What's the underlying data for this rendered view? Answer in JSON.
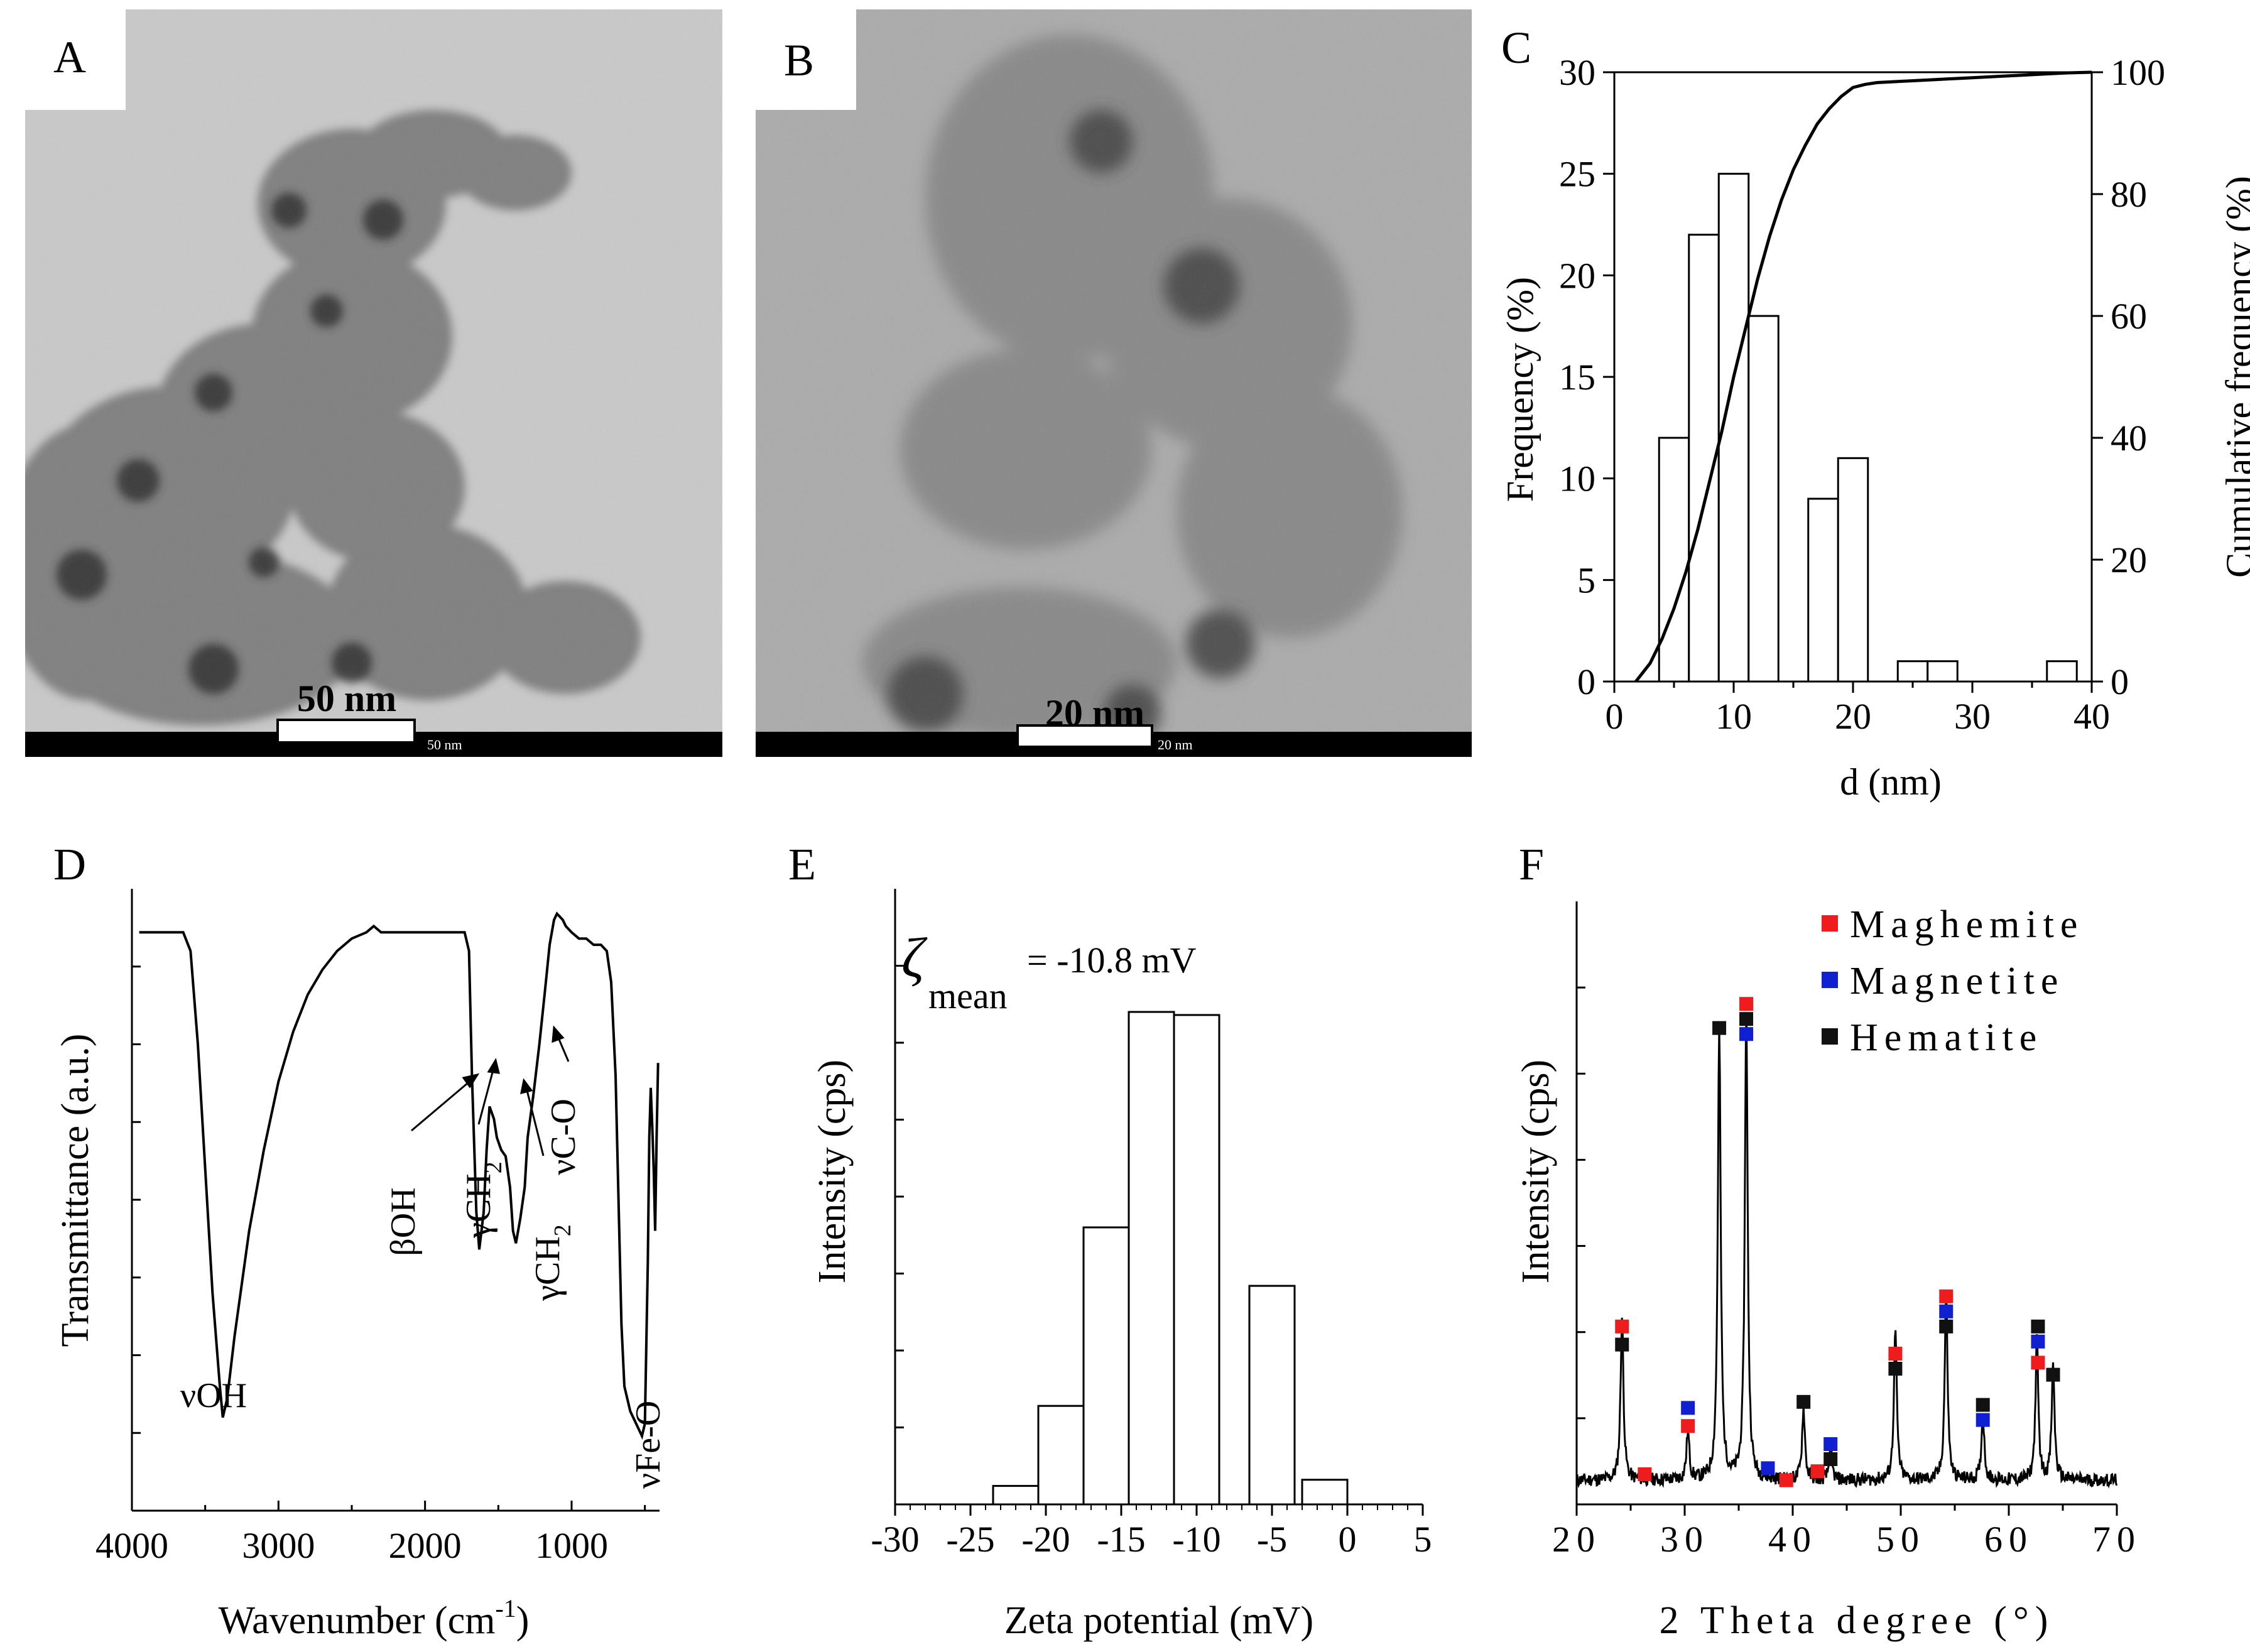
{
  "panels": {
    "A": {
      "label": "A",
      "scale_bar_label": "50 nm",
      "footer_text": "50 nm"
    },
    "B": {
      "label": "B",
      "scale_bar_label": "20 nm",
      "footer_text": "20 nm"
    },
    "C": {
      "label": "C",
      "xlabel": "d (nm)",
      "ylabel_left": "Frequency (%)",
      "ylabel_right": "Cumulative frequency (%)",
      "x_ticks": [
        "0",
        "10",
        "20",
        "30",
        "40"
      ],
      "y_left_ticks": [
        "0",
        "5",
        "10",
        "15",
        "20",
        "25",
        "30"
      ],
      "y_right_ticks": [
        "0",
        "20",
        "40",
        "60",
        "80",
        "100"
      ]
    },
    "D": {
      "label": "D",
      "xlabel_main": "Wavenumber (cm",
      "xlabel_sup": "-1",
      "xlabel_close": ")",
      "ylabel": "Transmittance (a.u.)",
      "x_ticks": [
        "4000",
        "3000",
        "2000",
        "1000"
      ],
      "annotations": {
        "voh": "νOH",
        "boh": "βOH",
        "gch2_a": "γCH",
        "gch2_b": "γCH",
        "sub2": "2",
        "vco": "νC-O",
        "vfeo": "νFe-O"
      }
    },
    "E": {
      "label": "E",
      "xlabel": "Zeta potential (mV)",
      "ylabel": "Intensity (cps)",
      "x_ticks": [
        "-30",
        "-25",
        "-20",
        "-15",
        "-10",
        "-5",
        "0",
        "5"
      ],
      "zeta_symbol": "ζ",
      "zeta_sub": "mean",
      "zeta_value": "= -10.8 mV"
    },
    "F": {
      "label": "F",
      "xlabel": "2 Theta degree (°)",
      "ylabel": "Intensity (cps)",
      "x_ticks": [
        "20",
        "30",
        "40",
        "50",
        "60",
        "70"
      ],
      "legend": [
        {
          "name": "Maghemite",
          "color": "#ee1c1c"
        },
        {
          "name": "Magnetite",
          "color": "#1020d0"
        },
        {
          "name": "Hematite",
          "color": "#111111"
        }
      ]
    }
  },
  "chart_data": [
    {
      "id": "C",
      "type": "bar",
      "xlabel": "d (nm)",
      "ylabel": "Frequency (%)",
      "y2label": "Cumulative frequency (%)",
      "xlim": [
        0,
        40
      ],
      "ylim": [
        0,
        30
      ],
      "y2lim": [
        0,
        100
      ],
      "bin_width": 2.5,
      "bins": [
        {
          "center": 5,
          "value": 12
        },
        {
          "center": 7.5,
          "value": 22
        },
        {
          "center": 10,
          "value": 25
        },
        {
          "center": 12.5,
          "value": 18
        },
        {
          "center": 17.5,
          "value": 9
        },
        {
          "center": 20,
          "value": 11
        },
        {
          "center": 25,
          "value": 1
        },
        {
          "center": 27.5,
          "value": 1
        },
        {
          "center": 37.5,
          "value": 1
        }
      ],
      "cumulative": {
        "x": [
          1.8,
          3,
          4,
          5,
          6,
          7,
          8,
          9,
          10,
          11,
          12,
          13,
          14,
          15,
          16,
          17,
          18,
          19,
          20,
          21,
          22,
          24,
          26,
          28,
          30,
          32,
          34,
          36,
          38,
          40
        ],
        "y": [
          0,
          3,
          7,
          12,
          18,
          25,
          33,
          41,
          50,
          58,
          66,
          73,
          79,
          84,
          88,
          91.5,
          94,
          96,
          97.5,
          98,
          98.3,
          98.5,
          98.7,
          98.9,
          99.1,
          99.3,
          99.5,
          99.7,
          99.9,
          100
        ]
      }
    },
    {
      "id": "D",
      "type": "line",
      "xlabel": "Wavenumber (cm-1)",
      "ylabel": "Transmittance (a.u.)",
      "xlim": [
        4000,
        400
      ],
      "ylim": [
        0,
        100
      ],
      "x": [
        3950,
        3650,
        3600,
        3550,
        3500,
        3450,
        3400,
        3380,
        3350,
        3300,
        3200,
        3100,
        3000,
        2900,
        2800,
        2700,
        2600,
        2500,
        2400,
        2350,
        2300,
        2200,
        2100,
        1950,
        1800,
        1730,
        1700,
        1680,
        1650,
        1630,
        1600,
        1580,
        1560,
        1530,
        1510,
        1480,
        1450,
        1420,
        1400,
        1380,
        1350,
        1320,
        1300,
        1260,
        1220,
        1180,
        1150,
        1120,
        1100,
        1060,
        1040,
        1000,
        950,
        900,
        850,
        800,
        760,
        730,
        700,
        680,
        660,
        640,
        620,
        600,
        580,
        560,
        540,
        520,
        500,
        480,
        470,
        460,
        450,
        440,
        430,
        420,
        410
      ],
      "y": [
        93,
        93,
        90,
        75,
        55,
        35,
        20,
        15,
        18,
        28,
        45,
        58,
        69,
        77,
        83,
        87,
        90,
        92,
        93,
        94,
        93,
        93,
        93,
        93,
        93,
        93,
        90,
        70,
        48,
        42,
        48,
        58,
        65,
        63,
        60,
        58,
        57,
        52,
        45,
        43,
        47,
        52,
        60,
        67,
        75,
        84,
        91,
        95,
        96,
        95,
        94,
        93,
        92,
        92,
        91,
        91,
        90,
        85,
        70,
        50,
        30,
        20,
        18,
        16,
        15,
        14,
        13,
        12,
        14,
        40,
        60,
        68,
        62,
        55,
        45,
        60,
        72
      ]
    },
    {
      "id": "E",
      "type": "bar",
      "xlabel": "Zeta potential (mV)",
      "ylabel": "Intensity (cps)",
      "xlim": [
        -30,
        5
      ],
      "bins": [
        {
          "left": -23.5,
          "right": -20.5,
          "value": 3
        },
        {
          "left": -20.5,
          "right": -17.5,
          "value": 16
        },
        {
          "left": -17.5,
          "right": -14.5,
          "value": 45
        },
        {
          "left": -14.5,
          "right": -11.5,
          "value": 80
        },
        {
          "left": -11.5,
          "right": -8.5,
          "value": 79.5
        },
        {
          "left": -6.5,
          "right": -3.5,
          "value": 35.5
        },
        {
          "left": -3,
          "right": 0,
          "value": 4
        }
      ],
      "ylim": [
        0,
        100
      ]
    },
    {
      "id": "F",
      "type": "line",
      "xlabel": "2 Theta degree (°)",
      "ylabel": "Intensity (cps)",
      "xlim": [
        20,
        70
      ],
      "ylim": [
        0,
        100
      ],
      "baseline": 4,
      "peaks": [
        {
          "x": 24.2,
          "h": 27
        },
        {
          "x": 30.3,
          "h": 8
        },
        {
          "x": 33.2,
          "h": 75
        },
        {
          "x": 35.7,
          "h": 78
        },
        {
          "x": 41,
          "h": 12
        },
        {
          "x": 43.5,
          "h": 5
        },
        {
          "x": 49.5,
          "h": 25
        },
        {
          "x": 54.2,
          "h": 31
        },
        {
          "x": 57.6,
          "h": 11
        },
        {
          "x": 62.6,
          "h": 23
        },
        {
          "x": 64.1,
          "h": 19
        }
      ],
      "markers": [
        {
          "x": 24.2,
          "y": 29.5,
          "phase": "Maghemite"
        },
        {
          "x": 24.2,
          "y": 26.5,
          "phase": "Hematite"
        },
        {
          "x": 26.3,
          "y": 5,
          "phase": "Maghemite"
        },
        {
          "x": 30.3,
          "y": 16,
          "phase": "Magnetite"
        },
        {
          "x": 30.3,
          "y": 13,
          "phase": "Maghemite"
        },
        {
          "x": 33.2,
          "y": 79,
          "phase": "Hematite"
        },
        {
          "x": 35.7,
          "y": 83,
          "phase": "Maghemite"
        },
        {
          "x": 35.7,
          "y": 80.5,
          "phase": "Hematite"
        },
        {
          "x": 35.7,
          "y": 78,
          "phase": "Magnetite"
        },
        {
          "x": 37.7,
          "y": 6,
          "phase": "Magnetite"
        },
        {
          "x": 39.4,
          "y": 4,
          "phase": "Maghemite"
        },
        {
          "x": 41,
          "y": 17,
          "phase": "Hematite"
        },
        {
          "x": 42.3,
          "y": 5.5,
          "phase": "Maghemite"
        },
        {
          "x": 43.5,
          "y": 10,
          "phase": "Magnetite"
        },
        {
          "x": 43.5,
          "y": 7.5,
          "phase": "Hematite"
        },
        {
          "x": 49.5,
          "y": 25,
          "phase": "Maghemite"
        },
        {
          "x": 49.5,
          "y": 22.5,
          "phase": "Hematite"
        },
        {
          "x": 54.2,
          "y": 34.5,
          "phase": "Maghemite"
        },
        {
          "x": 54.2,
          "y": 32,
          "phase": "Magnetite"
        },
        {
          "x": 54.2,
          "y": 29.5,
          "phase": "Hematite"
        },
        {
          "x": 57.6,
          "y": 16.5,
          "phase": "Hematite"
        },
        {
          "x": 57.6,
          "y": 14,
          "phase": "Magnetite"
        },
        {
          "x": 62.7,
          "y": 29.5,
          "phase": "Hematite"
        },
        {
          "x": 62.7,
          "y": 27,
          "phase": "Magnetite"
        },
        {
          "x": 62.7,
          "y": 23.5,
          "phase": "Maghemite"
        },
        {
          "x": 64.1,
          "y": 21.5,
          "phase": "Hematite"
        }
      ]
    }
  ]
}
